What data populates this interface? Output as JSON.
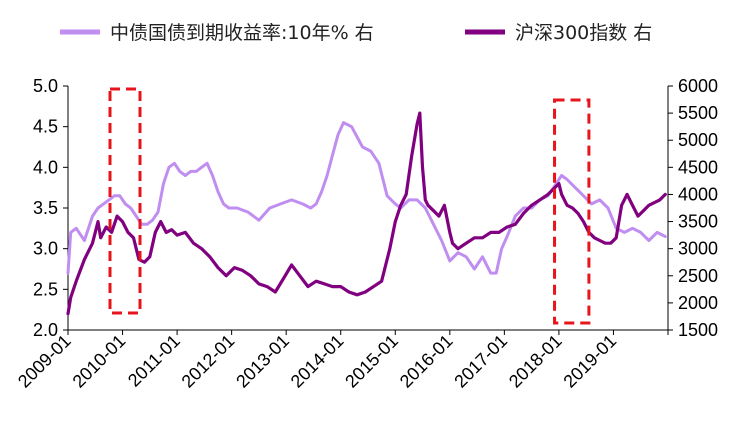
{
  "chart_data": {
    "type": "line",
    "title": "",
    "legend_position": "top",
    "x_tick_labels": [
      "2009-01",
      "2010-01",
      "2011-01",
      "2012-01",
      "2013-01",
      "2014-01",
      "2015-01",
      "2016-01",
      "2017-01",
      "2018-01",
      "2019-01"
    ],
    "x_range": [
      2009.0,
      2020.0
    ],
    "left_axis": {
      "ylim": [
        2.0,
        5.0
      ],
      "ticks": [
        "2.0",
        "2.5",
        "3.0",
        "3.5",
        "4.0",
        "4.5",
        "5.0"
      ]
    },
    "right_axis": {
      "ylim": [
        1500,
        6000
      ],
      "ticks": [
        "1500",
        "2000",
        "2500",
        "3000",
        "3500",
        "4000",
        "4500",
        "5000",
        "5500",
        "6000"
      ]
    },
    "series": [
      {
        "name": "中债国债到期收益率:10年% 右",
        "axis": "left",
        "color": "#c08ef0",
        "x": [
          2009.0,
          2009.05,
          2009.15,
          2009.3,
          2009.45,
          2009.55,
          2009.65,
          2009.75,
          2009.85,
          2009.95,
          2010.05,
          2010.15,
          2010.25,
          2010.35,
          2010.45,
          2010.55,
          2010.65,
          2010.75,
          2010.85,
          2010.95,
          2011.05,
          2011.15,
          2011.25,
          2011.35,
          2011.45,
          2011.55,
          2011.65,
          2011.75,
          2011.85,
          2011.95,
          2012.1,
          2012.3,
          2012.5,
          2012.7,
          2012.9,
          2013.1,
          2013.3,
          2013.45,
          2013.55,
          2013.65,
          2013.75,
          2013.85,
          2013.95,
          2014.05,
          2014.2,
          2014.4,
          2014.55,
          2014.7,
          2014.85,
          2015.0,
          2015.1,
          2015.25,
          2015.4,
          2015.55,
          2015.7,
          2015.85,
          2016.0,
          2016.15,
          2016.3,
          2016.45,
          2016.6,
          2016.75,
          2016.85,
          2016.95,
          2017.05,
          2017.2,
          2017.35,
          2017.5,
          2017.65,
          2017.8,
          2017.95,
          2018.05,
          2018.15,
          2018.3,
          2018.45,
          2018.6,
          2018.75,
          2018.9,
          2019.05,
          2019.2,
          2019.35,
          2019.5,
          2019.65,
          2019.8,
          2019.95
        ],
        "y": [
          2.7,
          3.2,
          3.25,
          3.1,
          3.4,
          3.5,
          3.55,
          3.6,
          3.65,
          3.65,
          3.55,
          3.5,
          3.4,
          3.3,
          3.3,
          3.35,
          3.45,
          3.8,
          4.0,
          4.05,
          3.95,
          3.9,
          3.95,
          3.95,
          4.0,
          4.05,
          3.9,
          3.7,
          3.55,
          3.5,
          3.5,
          3.45,
          3.35,
          3.5,
          3.55,
          3.6,
          3.55,
          3.5,
          3.55,
          3.7,
          3.9,
          4.15,
          4.4,
          4.55,
          4.5,
          4.25,
          4.2,
          4.05,
          3.65,
          3.55,
          3.5,
          3.6,
          3.6,
          3.5,
          3.3,
          3.1,
          2.85,
          2.95,
          2.9,
          2.75,
          2.9,
          2.7,
          2.7,
          3.0,
          3.15,
          3.4,
          3.5,
          3.5,
          3.6,
          3.65,
          3.8,
          3.9,
          3.85,
          3.75,
          3.65,
          3.55,
          3.6,
          3.5,
          3.25,
          3.2,
          3.25,
          3.2,
          3.1,
          3.2,
          3.15
        ]
      },
      {
        "name": "沪深300指数 右",
        "axis": "right",
        "color": "#800080",
        "x": [
          2009.0,
          2009.05,
          2009.15,
          2009.3,
          2009.45,
          2009.55,
          2009.6,
          2009.7,
          2009.8,
          2009.9,
          2010.0,
          2010.1,
          2010.2,
          2010.3,
          2010.4,
          2010.5,
          2010.6,
          2010.7,
          2010.8,
          2010.9,
          2011.0,
          2011.15,
          2011.3,
          2011.45,
          2011.6,
          2011.75,
          2011.9,
          2012.05,
          2012.2,
          2012.35,
          2012.5,
          2012.65,
          2012.8,
          2012.95,
          2013.1,
          2013.25,
          2013.4,
          2013.55,
          2013.7,
          2013.85,
          2014.0,
          2014.15,
          2014.3,
          2014.45,
          2014.6,
          2014.75,
          2014.9,
          2015.0,
          2015.1,
          2015.2,
          2015.3,
          2015.4,
          2015.45,
          2015.5,
          2015.55,
          2015.6,
          2015.7,
          2015.8,
          2015.9,
          2016.0,
          2016.05,
          2016.15,
          2016.3,
          2016.45,
          2016.6,
          2016.75,
          2016.9,
          2017.05,
          2017.2,
          2017.35,
          2017.5,
          2017.65,
          2017.8,
          2017.9,
          2018.0,
          2018.05,
          2018.15,
          2018.25,
          2018.35,
          2018.45,
          2018.55,
          2018.65,
          2018.75,
          2018.85,
          2018.95,
          2019.05,
          2019.15,
          2019.25,
          2019.35,
          2019.45,
          2019.55,
          2019.65,
          2019.75,
          2019.85,
          2019.95
        ],
        "y": [
          1800,
          2100,
          2400,
          2800,
          3100,
          3500,
          3200,
          3400,
          3300,
          3600,
          3500,
          3300,
          3200,
          2800,
          2750,
          2850,
          3300,
          3500,
          3300,
          3350,
          3250,
          3300,
          3100,
          3000,
          2850,
          2650,
          2500,
          2650,
          2600,
          2500,
          2350,
          2300,
          2200,
          2450,
          2700,
          2500,
          2300,
          2400,
          2350,
          2300,
          2300,
          2200,
          2150,
          2200,
          2300,
          2400,
          3000,
          3500,
          3800,
          4000,
          4700,
          5300,
          5500,
          4500,
          3900,
          3800,
          3700,
          3600,
          3800,
          3300,
          3100,
          3000,
          3100,
          3200,
          3200,
          3300,
          3300,
          3400,
          3450,
          3650,
          3800,
          3900,
          4000,
          4100,
          4200,
          4000,
          3800,
          3750,
          3650,
          3500,
          3300,
          3200,
          3150,
          3100,
          3100,
          3200,
          3800,
          4000,
          3800,
          3600,
          3700,
          3800,
          3850,
          3900,
          4000
        ]
      }
    ],
    "highlight_regions": [
      {
        "x_start": 2009.77,
        "x_end": 2010.32,
        "style": "dashed red box"
      },
      {
        "x_start": 2017.92,
        "x_end": 2018.55,
        "style": "dashed red box"
      }
    ]
  }
}
